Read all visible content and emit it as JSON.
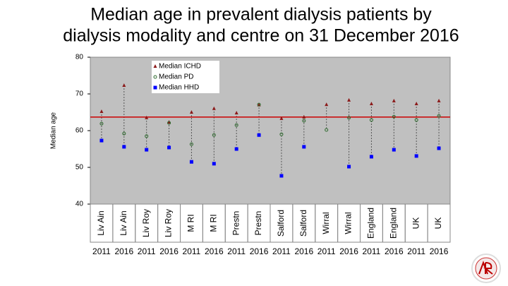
{
  "chart_data": {
    "type": "scatter",
    "title": [
      "Median age in prevalent dialysis patients by",
      "dialysis modality and centre on 31 December 2016"
    ],
    "y_label": "Median age",
    "categories": [
      "Liv Ain",
      "Liv Ain",
      "Liv Roy",
      "Liv Roy",
      "M RI",
      "M RI",
      "Prestn",
      "Prestn",
      "Salford",
      "Salford",
      "Wirral",
      "Wirral",
      "England",
      "England",
      "UK",
      "UK"
    ],
    "sublabels": [
      "2011",
      "2016",
      "2011",
      "2016",
      "2011",
      "2016",
      "2011",
      "2016",
      "2011",
      "2016",
      "2011",
      "2016",
      "2011",
      "2016",
      "2011",
      "2016"
    ],
    "series": [
      {
        "name": "Median ICHD",
        "color": "#8b1a1a",
        "marker": "triangle",
        "values": [
          65.2,
          72.3,
          63.5,
          62.3,
          65.0,
          66.0,
          64.8,
          67.0,
          63.3,
          63.7,
          67.1,
          68.3,
          67.3,
          68.1,
          67.3,
          68.1
        ]
      },
      {
        "name": "Median PD",
        "color": "#2d6a2d",
        "marker": "circle",
        "values": [
          61.9,
          59.2,
          58.5,
          62.1,
          56.3,
          58.8,
          61.5,
          67.1,
          59.0,
          62.7,
          60.2,
          63.5,
          62.9,
          63.8,
          62.9,
          64.0
        ]
      },
      {
        "name": "Median HHD",
        "color": "#0000ff",
        "marker": "square",
        "values": [
          57.3,
          55.6,
          54.8,
          55.4,
          51.5,
          51.0,
          55.0,
          58.8,
          47.7,
          55.6,
          null,
          50.2,
          52.9,
          54.8,
          53.1,
          55.2
        ]
      }
    ],
    "reference_line": {
      "value": 63.7,
      "color": "#cc0000"
    },
    "ylim": [
      40,
      80
    ],
    "yticks": [
      40,
      50,
      60,
      70,
      80
    ],
    "plot_color": "#c0c0c0",
    "legend": "top-left"
  }
}
